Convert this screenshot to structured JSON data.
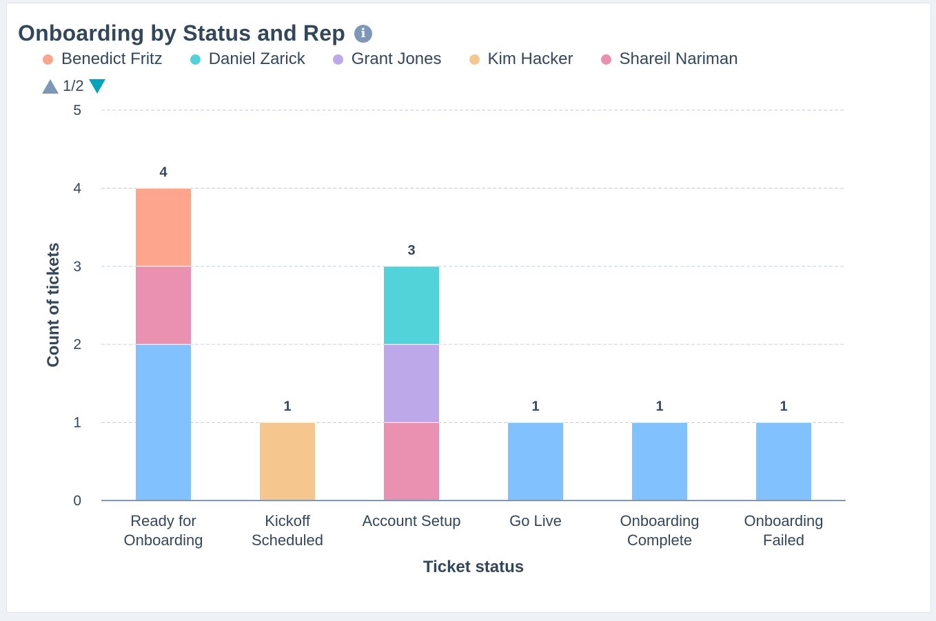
{
  "title": "Onboarding by Status and Rep",
  "info_icon": "info-icon",
  "legend": [
    {
      "name": "Benedict Fritz",
      "color": "#fea58e"
    },
    {
      "name": "Daniel Zarick",
      "color": "#51d3d9"
    },
    {
      "name": "Grant Jones",
      "color": "#bda9ea"
    },
    {
      "name": "Kim Hacker",
      "color": "#f5c78e"
    },
    {
      "name": "Shareil Nariman",
      "color": "#ea90b1"
    }
  ],
  "pager": {
    "label": "1/2",
    "prev_icon": "triangle-up-icon",
    "next_icon": "triangle-down-icon"
  },
  "chart_data": {
    "type": "bar",
    "stacked": true,
    "title": "Onboarding by Status and Rep",
    "xlabel": "Ticket status",
    "ylabel": "Count of tickets",
    "ylim": [
      0,
      5
    ],
    "yticks": [
      0,
      1,
      2,
      3,
      4,
      5
    ],
    "grid": true,
    "legend_position": "top-left",
    "categories": [
      [
        "Ready for",
        "Onboarding"
      ],
      [
        "Kickoff",
        "Scheduled"
      ],
      [
        "Account Setup"
      ],
      [
        "Go Live"
      ],
      [
        "Onboarding",
        "Complete"
      ],
      [
        "Onboarding",
        "Failed"
      ]
    ],
    "totals": [
      4,
      1,
      3,
      1,
      1,
      1
    ],
    "series": [
      {
        "color": "#81c1fd",
        "values": [
          2,
          0,
          0,
          1,
          1,
          1
        ]
      },
      {
        "name": "Shareil Nariman",
        "color": "#ea90b1",
        "values": [
          1,
          0,
          1,
          0,
          0,
          0
        ]
      },
      {
        "name": "Grant Jones",
        "color": "#bda9ea",
        "values": [
          0,
          0,
          1,
          0,
          0,
          0
        ]
      },
      {
        "name": "Daniel Zarick",
        "color": "#51d3d9",
        "values": [
          0,
          0,
          1,
          0,
          0,
          0
        ]
      },
      {
        "name": "Kim Hacker",
        "color": "#f5c78e",
        "values": [
          0,
          1,
          0,
          0,
          0,
          0
        ]
      },
      {
        "name": "Benedict Fritz",
        "color": "#fea58e",
        "values": [
          1,
          0,
          0,
          0,
          0,
          0
        ]
      }
    ]
  }
}
